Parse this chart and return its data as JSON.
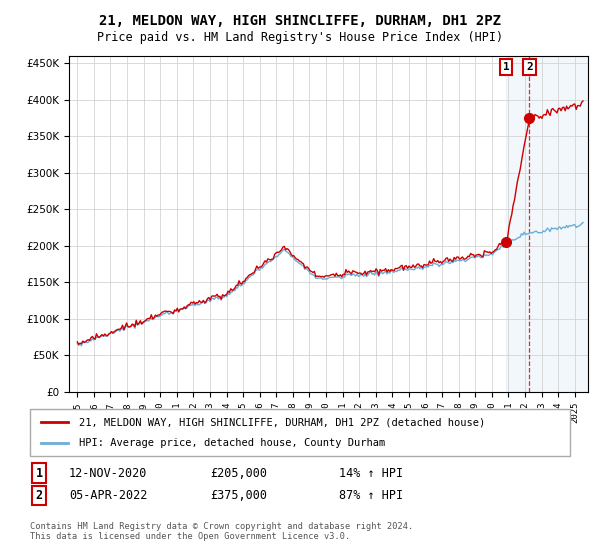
{
  "title": "21, MELDON WAY, HIGH SHINCLIFFE, DURHAM, DH1 2PZ",
  "subtitle": "Price paid vs. HM Land Registry's House Price Index (HPI)",
  "hpi_label": "HPI: Average price, detached house, County Durham",
  "property_label": "21, MELDON WAY, HIGH SHINCLIFFE, DURHAM, DH1 2PZ (detached house)",
  "footnote": "Contains HM Land Registry data © Crown copyright and database right 2024.\nThis data is licensed under the Open Government Licence v3.0.",
  "transaction1_date": "12-NOV-2020",
  "transaction1_price": 205000,
  "transaction1_pct": "14%",
  "transaction2_date": "05-APR-2022",
  "transaction2_price": 375000,
  "transaction2_pct": "87%",
  "hpi_color": "#6baed6",
  "property_color": "#cc0000",
  "highlight_color": "#ddeeff",
  "ylim_min": 0,
  "ylim_max": 460000,
  "t1_year": 2020.875,
  "t2_year": 2022.27,
  "xmin": 1994.5,
  "xmax": 2025.8
}
